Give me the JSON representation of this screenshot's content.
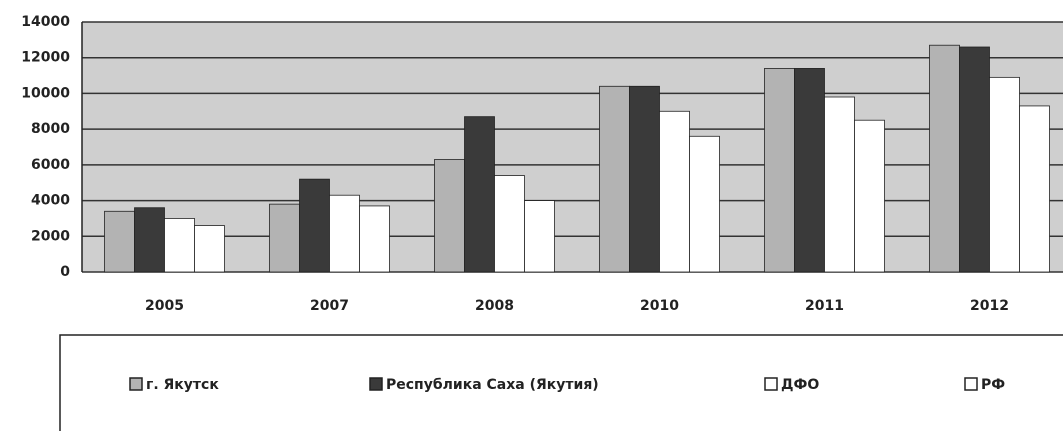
{
  "chart_data": {
    "type": "bar",
    "categories": [
      "2005",
      "2007",
      "2008",
      "2010",
      "2011",
      "2012"
    ],
    "series": [
      {
        "name": "г. Якутск",
        "color": "#b3b3b3",
        "values": [
          3400,
          3800,
          6300,
          10400,
          11400,
          12700
        ]
      },
      {
        "name": "Республика Саха (Якутия)",
        "color": "#3a3a3a",
        "values": [
          3600,
          5200,
          8700,
          10400,
          11400,
          12600
        ]
      },
      {
        "name": "ДФО",
        "color": "#ffffff",
        "values": [
          3000,
          4300,
          5400,
          9000,
          9800,
          10900
        ]
      },
      {
        "name": "РФ",
        "color": "#ffffff",
        "values": [
          2600,
          3700,
          4000,
          7600,
          8500,
          9300
        ]
      }
    ],
    "ylim": [
      0,
      14000
    ],
    "yticks": [
      0,
      2000,
      4000,
      6000,
      8000,
      10000,
      12000,
      14000
    ],
    "grid": true,
    "legend": "bottom"
  }
}
